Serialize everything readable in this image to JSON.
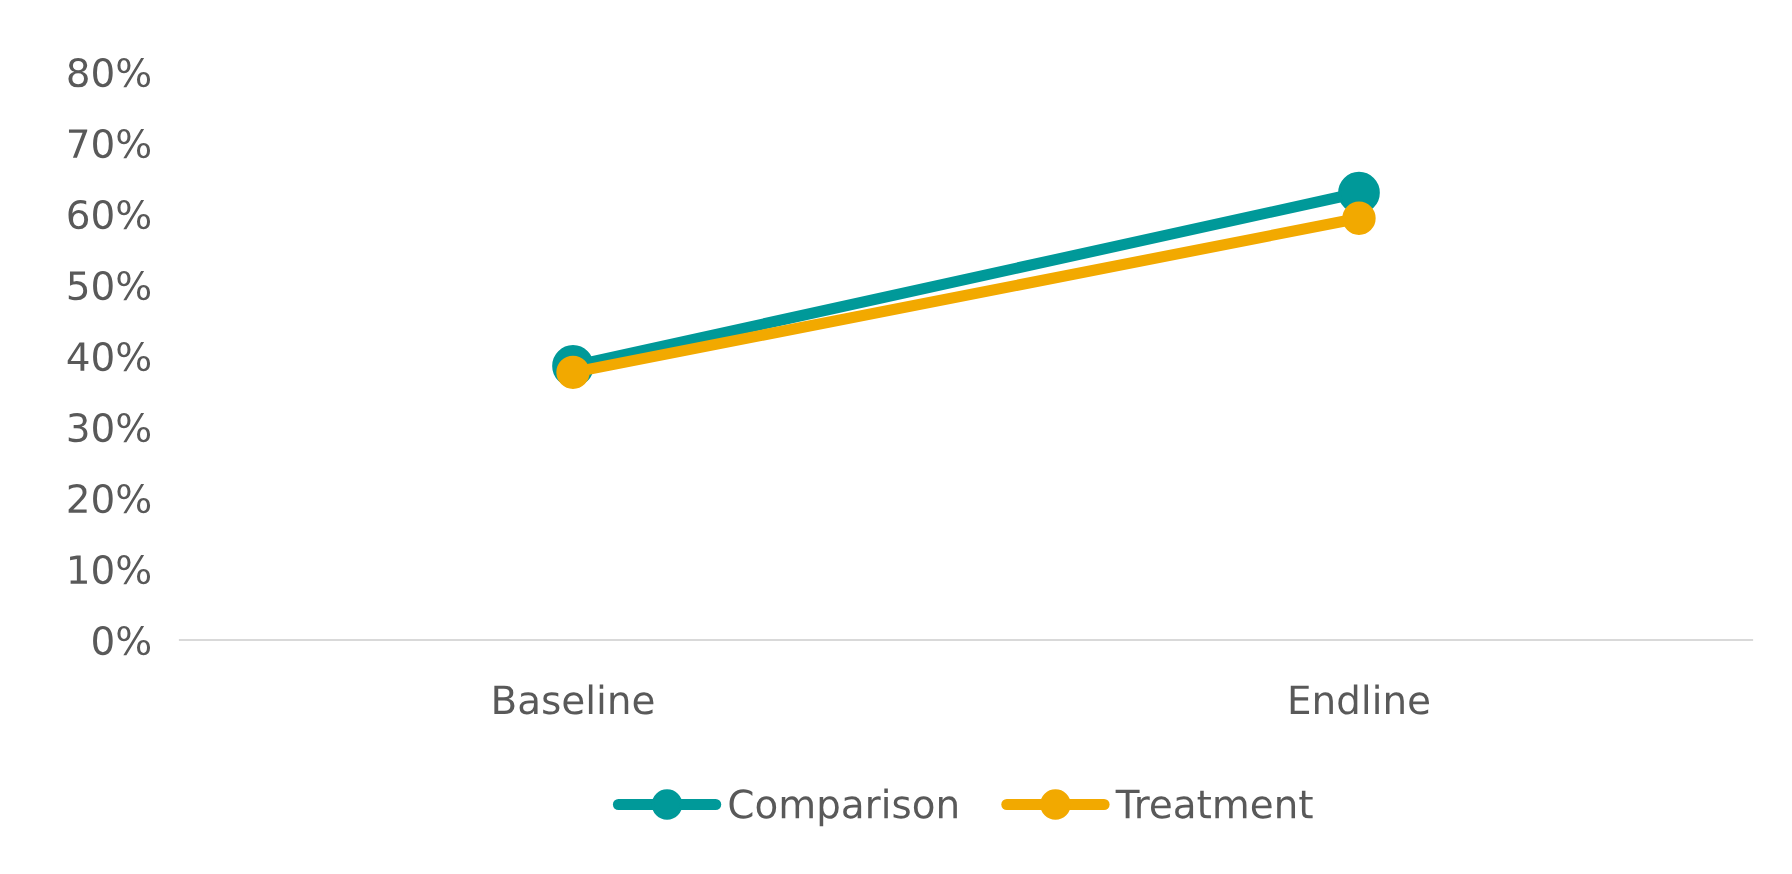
{
  "chart_data": {
    "type": "line",
    "categories": [
      "Baseline",
      "Endline"
    ],
    "series": [
      {
        "name": "Comparison",
        "color": "#009999",
        "values": [
          38.6,
          63
        ]
      },
      {
        "name": "Treatment",
        "color": "#f2a900",
        "values": [
          37.7,
          59.4
        ]
      }
    ],
    "ylim": [
      0,
      80
    ],
    "yticks": [
      {
        "value": 0,
        "label": "0%"
      },
      {
        "value": 10,
        "label": "10%"
      },
      {
        "value": 20,
        "label": "20%"
      },
      {
        "value": 30,
        "label": "30%"
      },
      {
        "value": 40,
        "label": "40%"
      },
      {
        "value": 50,
        "label": "50%"
      },
      {
        "value": 60,
        "label": "60%"
      },
      {
        "value": 70,
        "label": "70%"
      },
      {
        "value": 80,
        "label": "80%"
      }
    ],
    "marker": "circle",
    "legend": "bottom",
    "grid": false
  }
}
